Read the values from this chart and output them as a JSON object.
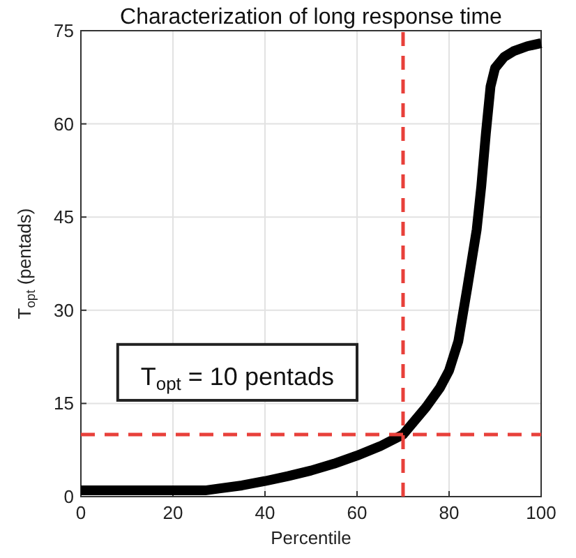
{
  "chart_data": {
    "type": "line",
    "title": "Characterization of long response time",
    "xlabel": "Percentile",
    "ylabel": "T$_{opt}$  (pentads)",
    "x": [
      0,
      10,
      20,
      27,
      30,
      35,
      40,
      45,
      50,
      55,
      60,
      65,
      70,
      75,
      78,
      80,
      82,
      84,
      86,
      87,
      88,
      89,
      90,
      92,
      94,
      97,
      100
    ],
    "series": [
      {
        "color": "#000000",
        "values": [
          1,
          1,
          1,
          1,
          1.3,
          1.8,
          2.5,
          3.3,
          4.2,
          5.3,
          6.6,
          8.1,
          10,
          14.4,
          17.5,
          20.3,
          25,
          33.8,
          43,
          50,
          58.5,
          66,
          69,
          70.8,
          71.7,
          72.5,
          73
        ]
      }
    ],
    "xlim": [
      0,
      100
    ],
    "ylim": [
      0,
      75
    ],
    "xticks": [
      0,
      20,
      40,
      60,
      80,
      100
    ],
    "yticks": [
      0,
      15,
      30,
      45,
      60,
      75
    ],
    "grid": true,
    "line_style": "solid",
    "marker": "none",
    "ref_lines": [
      {
        "axis": "x",
        "value": 70,
        "color": "#e8403a",
        "line_style": "dashed"
      },
      {
        "axis": "y",
        "value": 10,
        "color": "#e8403a",
        "line_style": "dashed"
      }
    ],
    "annotations": [
      "T$_{opt}$ = 10 pentads"
    ]
  }
}
